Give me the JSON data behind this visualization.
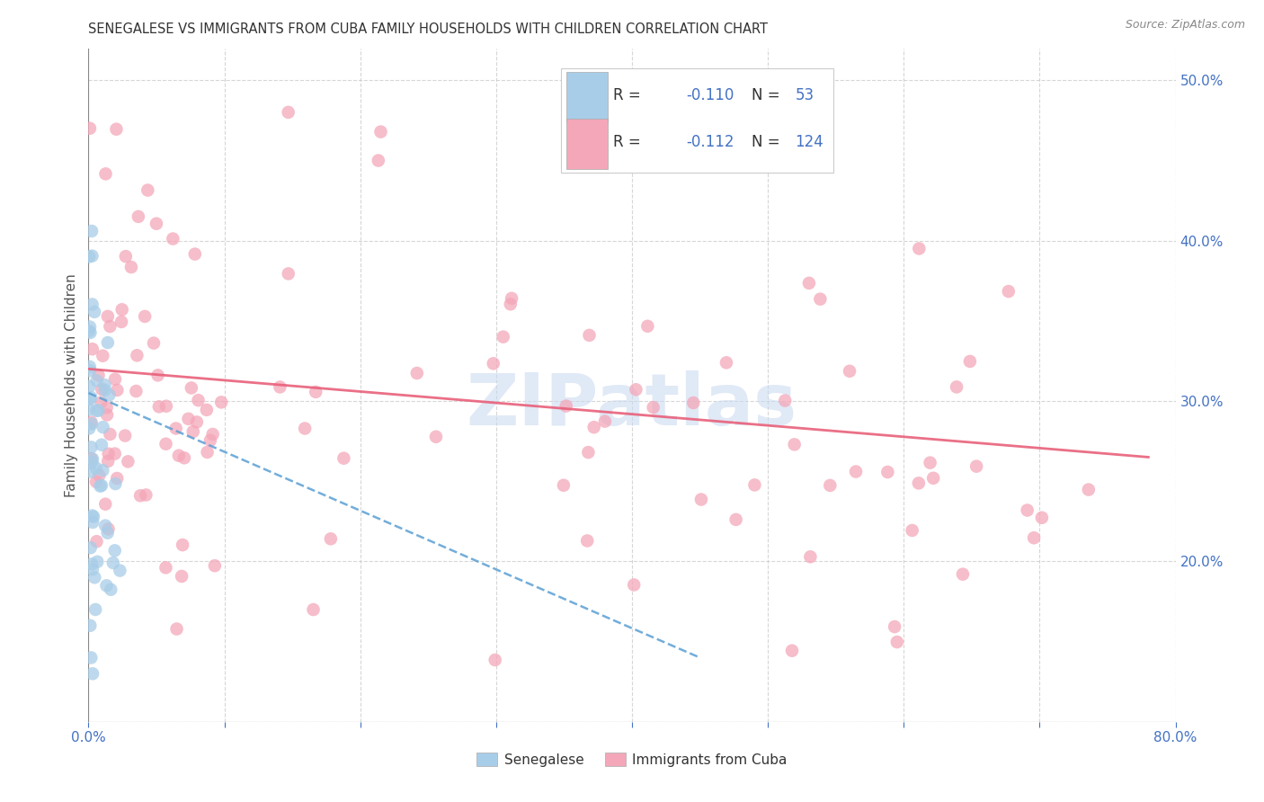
{
  "title": "SENEGALESE VS IMMIGRANTS FROM CUBA FAMILY HOUSEHOLDS WITH CHILDREN CORRELATION CHART",
  "source": "Source: ZipAtlas.com",
  "ylabel": "Family Households with Children",
  "xlim": [
    0.0,
    0.8
  ],
  "ylim": [
    0.1,
    0.52
  ],
  "color_blue": "#a8cde8",
  "color_pink": "#f4a7b9",
  "color_blue_line": "#5a9fd4",
  "color_pink_line": "#e8607a",
  "watermark": "ZIPatlas",
  "watermark_color": "#c8d8f0"
}
